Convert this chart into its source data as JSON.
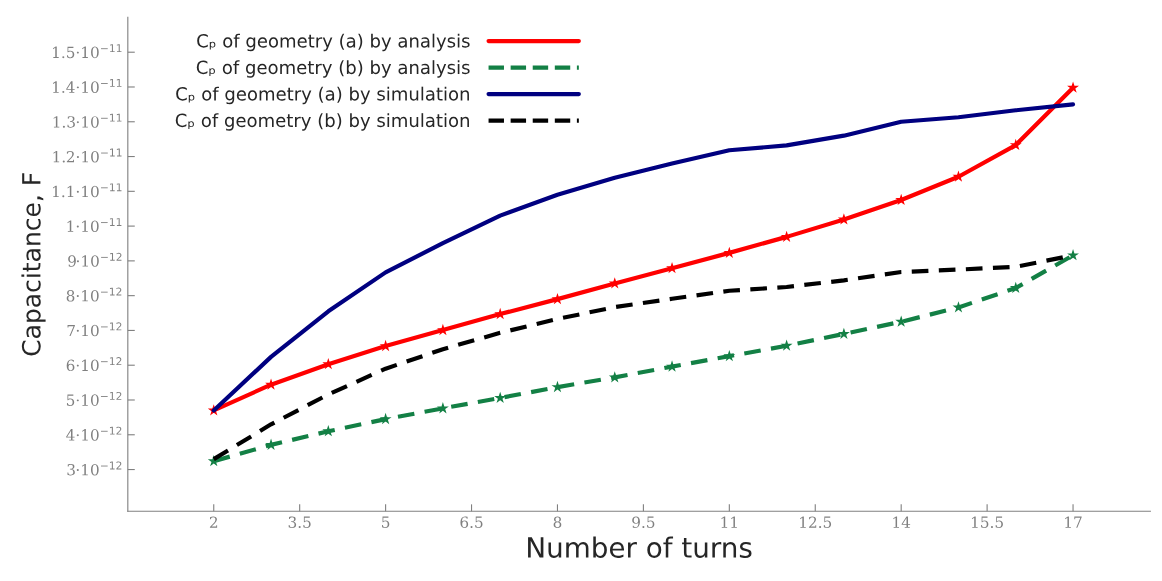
{
  "chart_data": {
    "type": "line",
    "xlabel": "Number of turns",
    "ylabel": "Capacitance, F",
    "x": [
      2,
      3,
      4,
      5,
      6,
      7,
      8,
      9,
      10,
      11,
      12,
      13,
      14,
      15,
      16,
      17
    ],
    "series": [
      {
        "name": "Cₚ of geometry (a) by analysis",
        "color": "#ff0000",
        "marker": "star",
        "line_style": "solid",
        "values": [
          4.7e-12,
          5.44e-12,
          6.03e-12,
          6.55e-12,
          7.01e-12,
          7.47e-12,
          7.9e-12,
          8.35e-12,
          8.79e-12,
          9.23e-12,
          9.69e-12,
          1.019e-11,
          1.075e-11,
          1.142e-11,
          1.233e-11,
          1.398e-11
        ]
      },
      {
        "name": "Cₚ of geometry (b) by analysis",
        "color": "#138045",
        "marker": "star",
        "line_style": "dashed",
        "values": [
          3.24e-12,
          3.71e-12,
          4.1e-12,
          4.45e-12,
          4.76e-12,
          5.06e-12,
          5.37e-12,
          5.65e-12,
          5.96e-12,
          6.26e-12,
          6.56e-12,
          6.9e-12,
          7.25e-12,
          7.66e-12,
          8.22e-12,
          9.16e-12
        ]
      },
      {
        "name": "Cₚ of geometry (a) by simulation",
        "color": "#000080",
        "marker": "none",
        "line_style": "solid",
        "values": [
          4.7e-12,
          6.24e-12,
          7.55e-12,
          8.67e-12,
          9.51e-12,
          1.03e-11,
          1.09e-11,
          1.139e-11,
          1.18e-11,
          1.218e-11,
          1.232e-11,
          1.26e-11,
          1.3e-11,
          1.313e-11,
          1.333e-11,
          1.35e-11
        ]
      },
      {
        "name": "Cₚ of geometry (b) by simulation",
        "color": "#000000",
        "marker": "none",
        "line_style": "dashed",
        "values": [
          3.3e-12,
          4.3e-12,
          5.16e-12,
          5.9e-12,
          6.46e-12,
          6.93e-12,
          7.33e-12,
          7.67e-12,
          7.91e-12,
          8.14e-12,
          8.25e-12,
          8.44e-12,
          8.68e-12,
          8.75e-12,
          8.83e-12,
          9.16e-12
        ]
      }
    ],
    "xlim": [
      0.5,
      18.35
    ],
    "xticks": [
      2,
      3.5,
      5,
      6.5,
      8,
      9.5,
      11,
      12.5,
      14,
      15.5,
      17
    ],
    "ylim": [
      1.8e-12,
      1.6e-11
    ],
    "yticks": [
      {
        "value": 3e-12,
        "label": "3·10$^{−12}$"
      },
      {
        "value": 4e-12,
        "label": "4·10$^{−12}$"
      },
      {
        "value": 5e-12,
        "label": "5·10$^{−12}$"
      },
      {
        "value": 6e-12,
        "label": "6·10$^{−12}$"
      },
      {
        "value": 7e-12,
        "label": "7·10$^{−12}$"
      },
      {
        "value": 8e-12,
        "label": "8·10$^{−12}$"
      },
      {
        "value": 9e-12,
        "label": "9·10$^{−12}$"
      },
      {
        "value": 1e-11,
        "label": "1·10$^{−11}$"
      },
      {
        "value": 1.1e-11,
        "label": "1.1·10$^{−11}$"
      },
      {
        "value": 1.2e-11,
        "label": "1.2·10$^{−11}$"
      },
      {
        "value": 1.3e-11,
        "label": "1.3·10$^{−11}$"
      },
      {
        "value": 1.4e-11,
        "label": "1.4·10$^{−11}$"
      },
      {
        "value": 1.5e-11,
        "label": "1.5·10$^{−11}$"
      }
    ],
    "grid": false,
    "legend": "top left"
  }
}
